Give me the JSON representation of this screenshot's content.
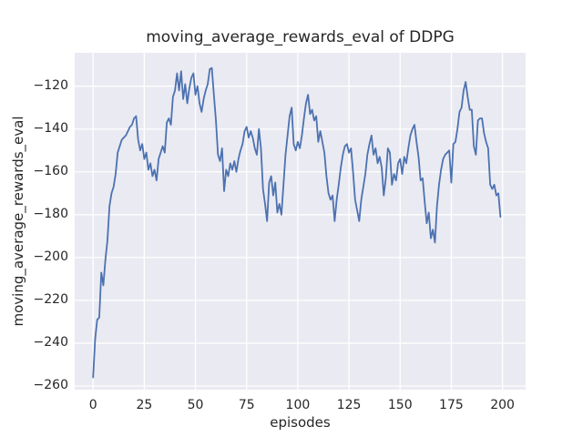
{
  "chart_data": {
    "type": "line",
    "title": "moving_average_rewards_eval of DDPG",
    "xlabel": "episodes",
    "ylabel": "moving_average_rewards_eval",
    "x_ticks": [
      0,
      25,
      50,
      75,
      100,
      125,
      150,
      175,
      200
    ],
    "y_ticks": [
      -120,
      -140,
      -160,
      -180,
      -200,
      -220,
      -240,
      -260
    ],
    "xlim": [
      -9,
      211.3
    ],
    "ylim": [
      -261.7,
      -104.4
    ],
    "grid": true,
    "legend": false,
    "style": {
      "fig_bg": "#ffffff",
      "plot_bg": "#eaeaf2",
      "grid_color": "#ffffff",
      "line_color": "#4c72b0",
      "text_color": "#262626",
      "line_width": 1.8
    },
    "series": [
      {
        "name": "moving_average_rewards_eval",
        "x_start": 0,
        "x_step": 1,
        "values": [
          -256,
          -238,
          -229,
          -228,
          -207,
          -213,
          -201,
          -192,
          -176,
          -170,
          -167,
          -161,
          -151,
          -148,
          -145,
          -144,
          -143,
          -141,
          -139,
          -138,
          -135,
          -134,
          -145,
          -150,
          -147,
          -154,
          -151,
          -159,
          -156,
          -162,
          -159,
          -164,
          -154,
          -151,
          -148,
          -151,
          -137,
          -135,
          -138,
          -125,
          -122,
          -114,
          -122,
          -113,
          -126,
          -119,
          -128,
          -121,
          -116,
          -114,
          -124,
          -120,
          -128,
          -132,
          -126,
          -122,
          -119,
          -112,
          -111.5,
          -124,
          -136,
          -152,
          -155,
          -149,
          -169,
          -159,
          -162,
          -156,
          -159,
          -155,
          -160,
          -154,
          -150,
          -147,
          -141,
          -139,
          -144,
          -141,
          -144,
          -149,
          -152,
          -140,
          -149,
          -168,
          -175,
          -183,
          -165,
          -162,
          -171,
          -165,
          -179,
          -175,
          -180,
          -166,
          -152,
          -143,
          -134,
          -130,
          -147,
          -150,
          -146,
          -149,
          -143,
          -135,
          -128,
          -124,
          -133,
          -131,
          -136,
          -134,
          -146,
          -141,
          -146,
          -151,
          -162,
          -170,
          -173,
          -171,
          -183,
          -173,
          -166,
          -158,
          -152,
          -148,
          -147,
          -151,
          -149,
          -160,
          -173,
          -178,
          -183,
          -173,
          -167,
          -161,
          -152,
          -147,
          -143,
          -152,
          -149,
          -156,
          -153,
          -158,
          -171,
          -163,
          -149,
          -151,
          -166,
          -161,
          -164,
          -156,
          -154,
          -161,
          -153,
          -156,
          -149,
          -143,
          -140,
          -138,
          -146,
          -153,
          -164,
          -163,
          -174,
          -184,
          -179,
          -191,
          -187,
          -193,
          -176,
          -166,
          -159,
          -154,
          -152,
          -151,
          -150,
          -165,
          -147,
          -146,
          -140,
          -132,
          -130,
          -122,
          -118,
          -125,
          -131,
          -131,
          -148,
          -152,
          -136,
          -135,
          -135,
          -142,
          -146,
          -149,
          -166,
          -168,
          -166,
          -171,
          -170,
          -181
        ]
      }
    ]
  }
}
